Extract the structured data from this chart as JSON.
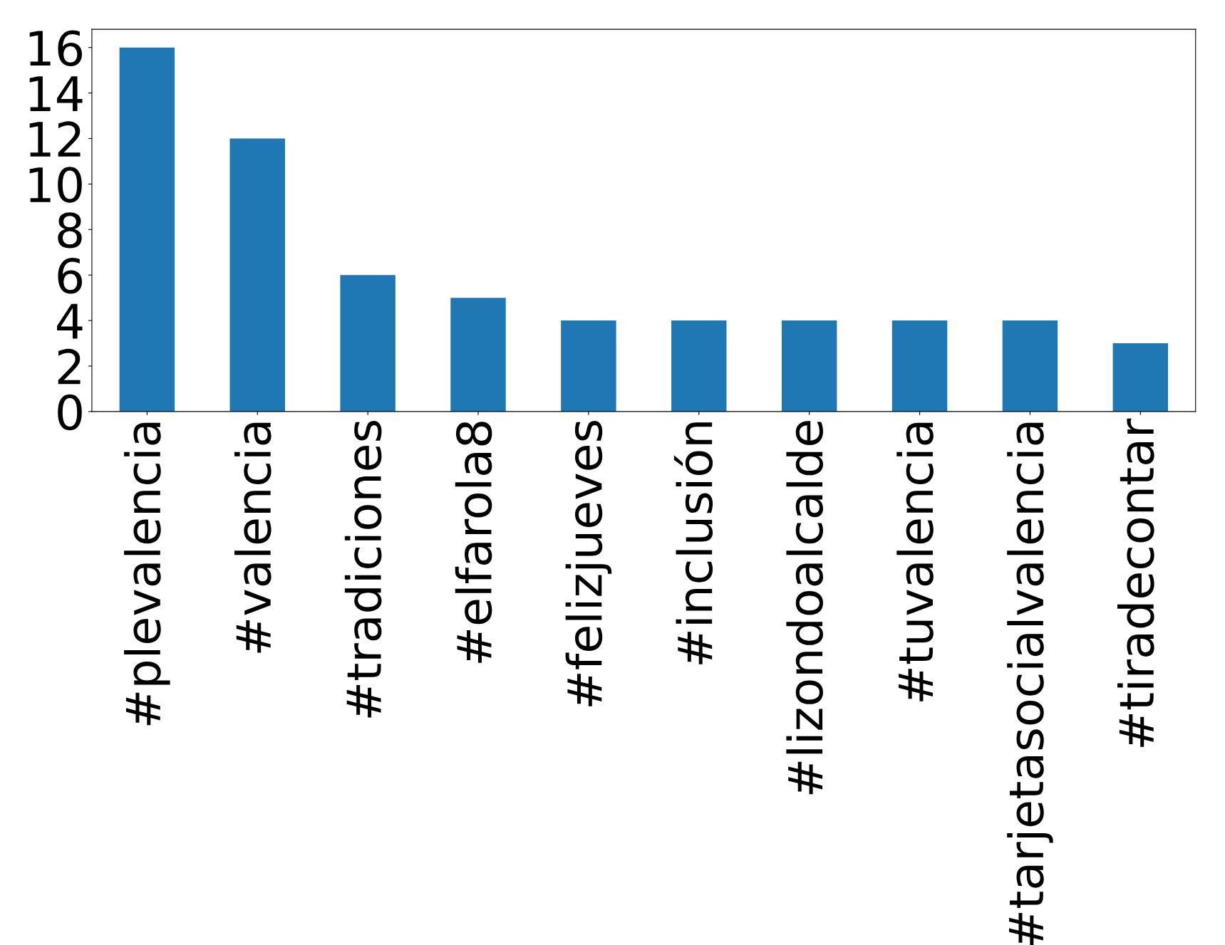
{
  "chart_data": {
    "type": "bar",
    "categories": [
      "#plevalencia",
      "#valencia",
      "#tradiciones",
      "#elfarola8",
      "#felizjueves",
      "#inclusión",
      "#lizondoalcalde",
      "#tuvalencia",
      "#tarjetasocialvalencia",
      "#tiradecontar"
    ],
    "values": [
      16,
      12,
      6,
      5,
      4,
      4,
      4,
      4,
      4,
      3
    ],
    "color": "#1f77b4",
    "ylim": [
      0,
      16.8
    ],
    "yticks": [
      0,
      2,
      4,
      6,
      8,
      10,
      12,
      14,
      16
    ],
    "grid": false,
    "legend": false
  }
}
